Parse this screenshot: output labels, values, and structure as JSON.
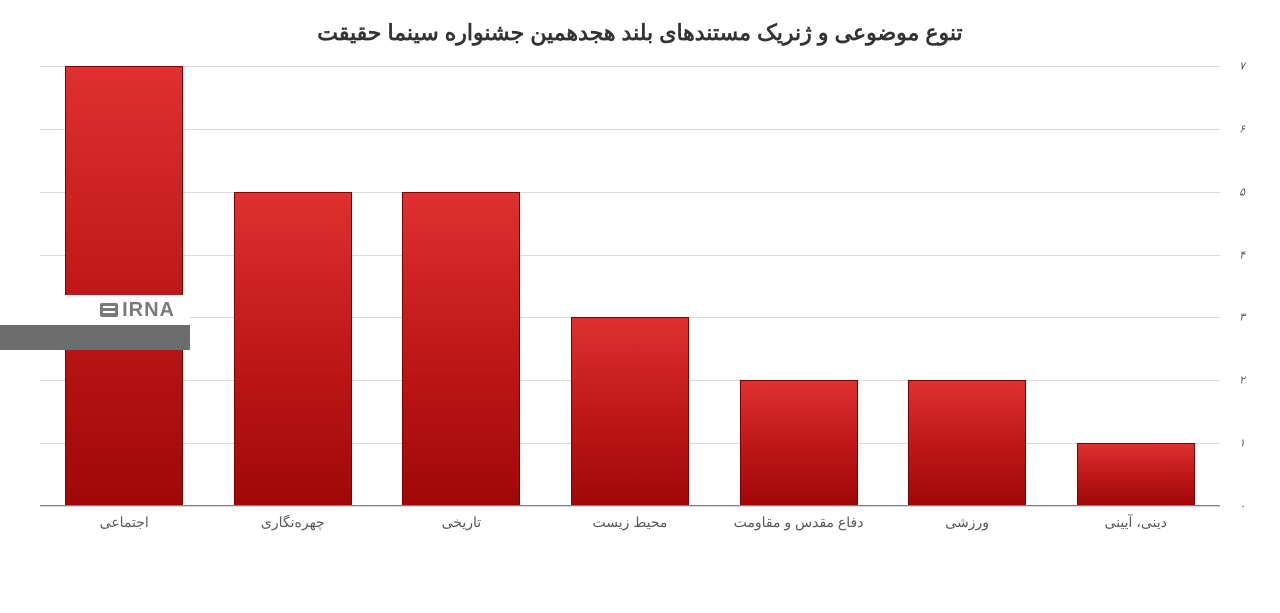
{
  "chart": {
    "type": "bar",
    "title": "تنوع موضوعی و ژنریک مستندهای بلند هجدهمین جشنواره سینما حقیقت",
    "title_fontsize": 22,
    "title_color": "#333333",
    "categories": [
      "اجتماعی",
      "چهره‌نگاری",
      "تاریخی",
      "محیط زیست",
      "دفاع مقدس و مقاومت",
      "ورزشی",
      "دینی، آیینی"
    ],
    "values": [
      7,
      5,
      5,
      3,
      2,
      2,
      1
    ],
    "bar_color_gradient": [
      "#e03030",
      "#c01818",
      "#a00808"
    ],
    "bar_border_color": "#800000",
    "bar_width_ratio": 0.7,
    "ylim": [
      0,
      7
    ],
    "ytick_step": 1,
    "yticks": [
      "۰",
      "۱",
      "۲",
      "۳",
      "۴",
      "۵",
      "۶",
      "۷"
    ],
    "grid_color": "#d9d9d9",
    "axis_color": "#808080",
    "label_color": "#595959",
    "label_fontsize": 14,
    "ytick_fontsize": 11,
    "background_color": "#ffffff",
    "direction": "rtl"
  },
  "watermark": {
    "text": "IRNA",
    "top_bg": "#ffffff",
    "bottom_bg": "#6d6d6d",
    "text_color": "#7a7a7a"
  }
}
